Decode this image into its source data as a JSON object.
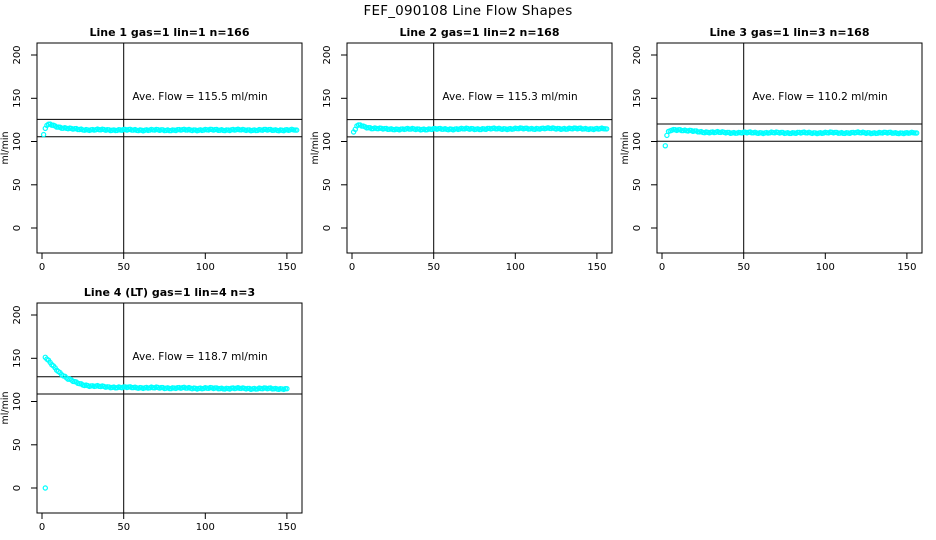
{
  "page": {
    "title": "FEF_090108  Line Flow Shapes"
  },
  "colors": {
    "points": "#00FFFF",
    "axis": "#000000",
    "background": "#FFFFFF"
  },
  "axes": {
    "ylabel": "ml/min",
    "x_ticks": [
      0,
      50,
      100,
      150
    ],
    "y_ticks": [
      0,
      50,
      100,
      150,
      200
    ],
    "xlim": [
      0,
      157
    ],
    "ylim": [
      0,
      200
    ],
    "vline_x": 50,
    "grid": false,
    "legend": "none"
  },
  "chart_data": [
    {
      "type": "scatter",
      "title": "Line 1 gas=1 lin=1 n=166",
      "n": 166,
      "annotation": "Ave. Flow =  115.5  ml/min",
      "ave_flow": 115.5,
      "hlines": [
        105.5,
        125.5
      ],
      "marker": "open-circle",
      "x_step": 1,
      "anchors": [
        [
          2,
          115
        ],
        [
          3,
          118.5
        ],
        [
          5,
          120
        ],
        [
          8,
          118
        ],
        [
          12,
          116
        ],
        [
          18,
          114.5
        ],
        [
          30,
          113.5
        ],
        [
          70,
          113.2
        ],
        [
          110,
          113.4
        ],
        [
          156,
          113.2
        ]
      ],
      "outliers": [
        [
          1,
          108
        ]
      ]
    },
    {
      "type": "scatter",
      "title": "Line 2 gas=1 lin=2 n=168",
      "n": 168,
      "annotation": "Ave. Flow =  115.3  ml/min",
      "ave_flow": 115.3,
      "hlines": [
        105.3,
        125.3
      ],
      "marker": "open-circle",
      "x_step": 1,
      "anchors": [
        [
          2,
          114
        ],
        [
          3,
          118
        ],
        [
          5,
          119
        ],
        [
          8,
          117
        ],
        [
          12,
          115.5
        ],
        [
          20,
          114.4
        ],
        [
          40,
          114.2
        ],
        [
          80,
          114.6
        ],
        [
          120,
          115
        ],
        [
          156,
          114.6
        ]
      ],
      "outliers": [
        [
          1,
          111
        ]
      ]
    },
    {
      "type": "scatter",
      "title": "Line 3 gas=1 lin=3 n=168",
      "n": 168,
      "annotation": "Ave. Flow =  110.2  ml/min",
      "ave_flow": 110.2,
      "hlines": [
        100.2,
        120.2
      ],
      "marker": "open-circle",
      "x_step": 1,
      "anchors": [
        [
          3,
          107
        ],
        [
          4,
          111
        ],
        [
          6,
          113.5
        ],
        [
          10,
          113.8
        ],
        [
          15,
          112.5
        ],
        [
          25,
          111
        ],
        [
          40,
          110.3
        ],
        [
          80,
          110
        ],
        [
          120,
          110.1
        ],
        [
          156,
          109.8
        ]
      ],
      "outliers": [
        [
          2,
          95
        ]
      ]
    },
    {
      "type": "scatter",
      "title": "Line 4 (LT) gas=1 lin=4 n=3",
      "n": 3,
      "annotation": "Ave. Flow =  118.7  ml/min",
      "ave_flow": 118.7,
      "hlines": [
        108.7,
        128.7
      ],
      "marker": "open-circle",
      "x_step": 1,
      "anchors": [
        [
          2,
          151
        ],
        [
          4,
          147
        ],
        [
          6,
          143
        ],
        [
          8,
          139
        ],
        [
          10,
          135
        ],
        [
          13,
          130
        ],
        [
          16,
          126
        ],
        [
          20,
          122.5
        ],
        [
          25,
          119.5
        ],
        [
          30,
          118
        ],
        [
          40,
          116.8
        ],
        [
          50,
          116.3
        ],
        [
          70,
          115.8
        ],
        [
          100,
          115.3
        ],
        [
          130,
          115
        ],
        [
          150,
          114.8
        ]
      ],
      "outliers": [
        [
          2,
          0
        ]
      ]
    }
  ]
}
